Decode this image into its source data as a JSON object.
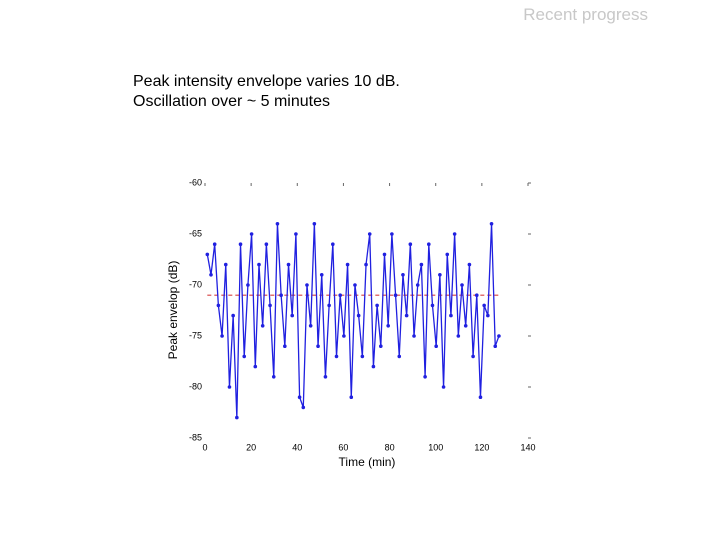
{
  "slide_title": "Recent progress",
  "bullets": [
    "Peak intensity envelope varies 10 dB.",
    "Oscillation over ~ 5 minutes"
  ],
  "chart_data": {
    "type": "line",
    "xlabel": "Time (min)",
    "ylabel": "Peak envelop (dB)",
    "xlim": [
      0,
      140
    ],
    "xticks": [
      0,
      20,
      40,
      60,
      80,
      100,
      120,
      140
    ],
    "ylim": [
      -85,
      -60
    ],
    "yticks": [
      -60,
      -65,
      -70,
      -75,
      -80,
      -85
    ],
    "reference_line": {
      "value": -71,
      "color": "#e07070"
    },
    "x": [
      1,
      2.6,
      4.2,
      5.8,
      7.4,
      9,
      10.6,
      12.2,
      13.8,
      15.4,
      17,
      18.6,
      20.2,
      21.8,
      23.4,
      25,
      26.6,
      28.2,
      29.8,
      31.4,
      33,
      34.6,
      36.2,
      37.8,
      39.4,
      41,
      42.6,
      44.2,
      45.8,
      47.4,
      49,
      50.6,
      52.2,
      53.8,
      55.4,
      57,
      58.6,
      60.2,
      61.8,
      63.4,
      65,
      66.6,
      68.2,
      69.8,
      71.4,
      73,
      74.6,
      76.2,
      77.8,
      79.4,
      81,
      82.6,
      84.2,
      85.8,
      87.4,
      89,
      90.6,
      92.2,
      93.8,
      95.4,
      97,
      98.6,
      100.2,
      101.8,
      103.4,
      105,
      106.6,
      108.2,
      109.8,
      111.4,
      113,
      114.6,
      116.2,
      117.8,
      119.4,
      121,
      122.6,
      124.2,
      125.8,
      127.4
    ],
    "series": [
      {
        "color": "#2020e0",
        "values": [
          -67,
          -69,
          -66,
          -72,
          -75,
          -68,
          -80,
          -73,
          -83,
          -66,
          -77,
          -70,
          -65,
          -78,
          -68,
          -74,
          -66,
          -72,
          -79,
          -64,
          -71,
          -76,
          -68,
          -73,
          -65,
          -81,
          -82,
          -70,
          -74,
          -64,
          -76,
          -69,
          -79,
          -72,
          -66,
          -77,
          -71,
          -75,
          -68,
          -81,
          -70,
          -73,
          -77,
          -68,
          -65,
          -78,
          -72,
          -76,
          -67,
          -74,
          -65,
          -71,
          -77,
          -69,
          -73,
          -66,
          -75,
          -70,
          -68,
          -79,
          -66,
          -72,
          -76,
          -69,
          -80,
          -67,
          -73,
          -65,
          -75,
          -70,
          -74,
          -68,
          -77,
          -71,
          -81,
          -72,
          -73,
          -64,
          -76,
          -75
        ]
      }
    ]
  }
}
